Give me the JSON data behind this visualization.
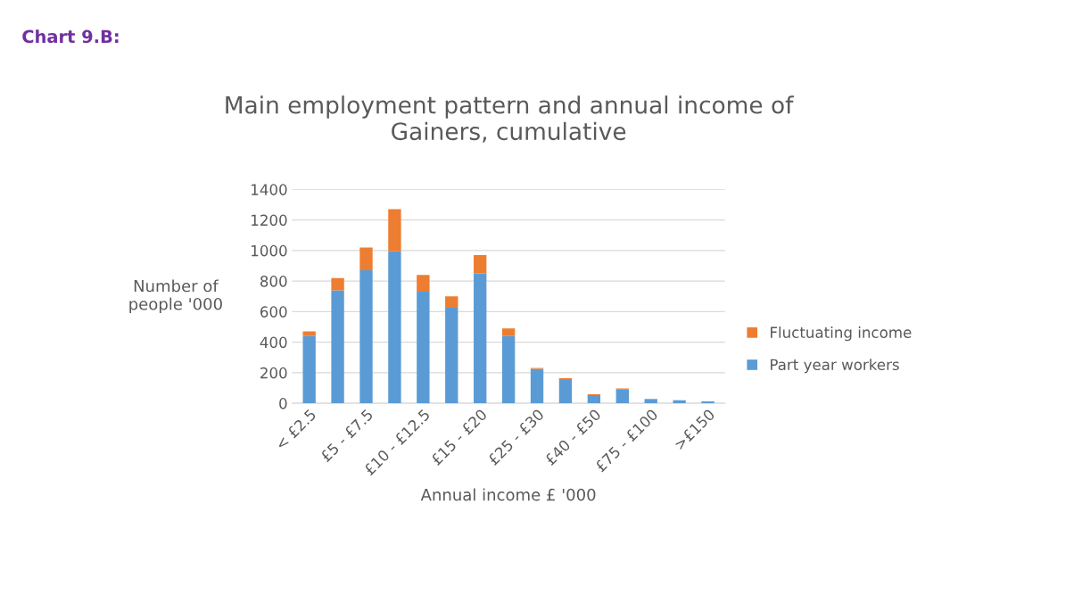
{
  "chart_data": {
    "type": "bar",
    "title": "Main employment pattern and annual income of\nGainers, cumulative",
    "xlabel": "Annual income £ '000",
    "ylabel": "Number of\npeople '000",
    "annotations": [
      "Chart 9.B:"
    ],
    "categories": [
      "< £2.5",
      null,
      "£5 - £7.5",
      null,
      "£10 - £12.5",
      null,
      "£15 - £20",
      null,
      "£25 - £30",
      null,
      "£40 - £50",
      null,
      "£75 - £100",
      null,
      ">£150"
    ],
    "stacked": true,
    "series": [
      {
        "name": "Part year workers",
        "color": "#5b9bd5",
        "values": [
          440,
          740,
          870,
          995,
          730,
          625,
          850,
          440,
          225,
          158,
          53,
          89,
          28,
          20,
          12
        ]
      },
      {
        "name": "Fluctuating income",
        "color": "#ed7d31",
        "values": [
          30,
          80,
          150,
          275,
          110,
          75,
          120,
          50,
          6,
          6,
          6,
          8,
          0,
          0,
          0
        ]
      }
    ],
    "ylim": [
      0,
      1400
    ],
    "yticks": [
      0,
      200,
      400,
      600,
      800,
      1000,
      1200,
      1400
    ],
    "grid": "y",
    "legend": "right"
  }
}
